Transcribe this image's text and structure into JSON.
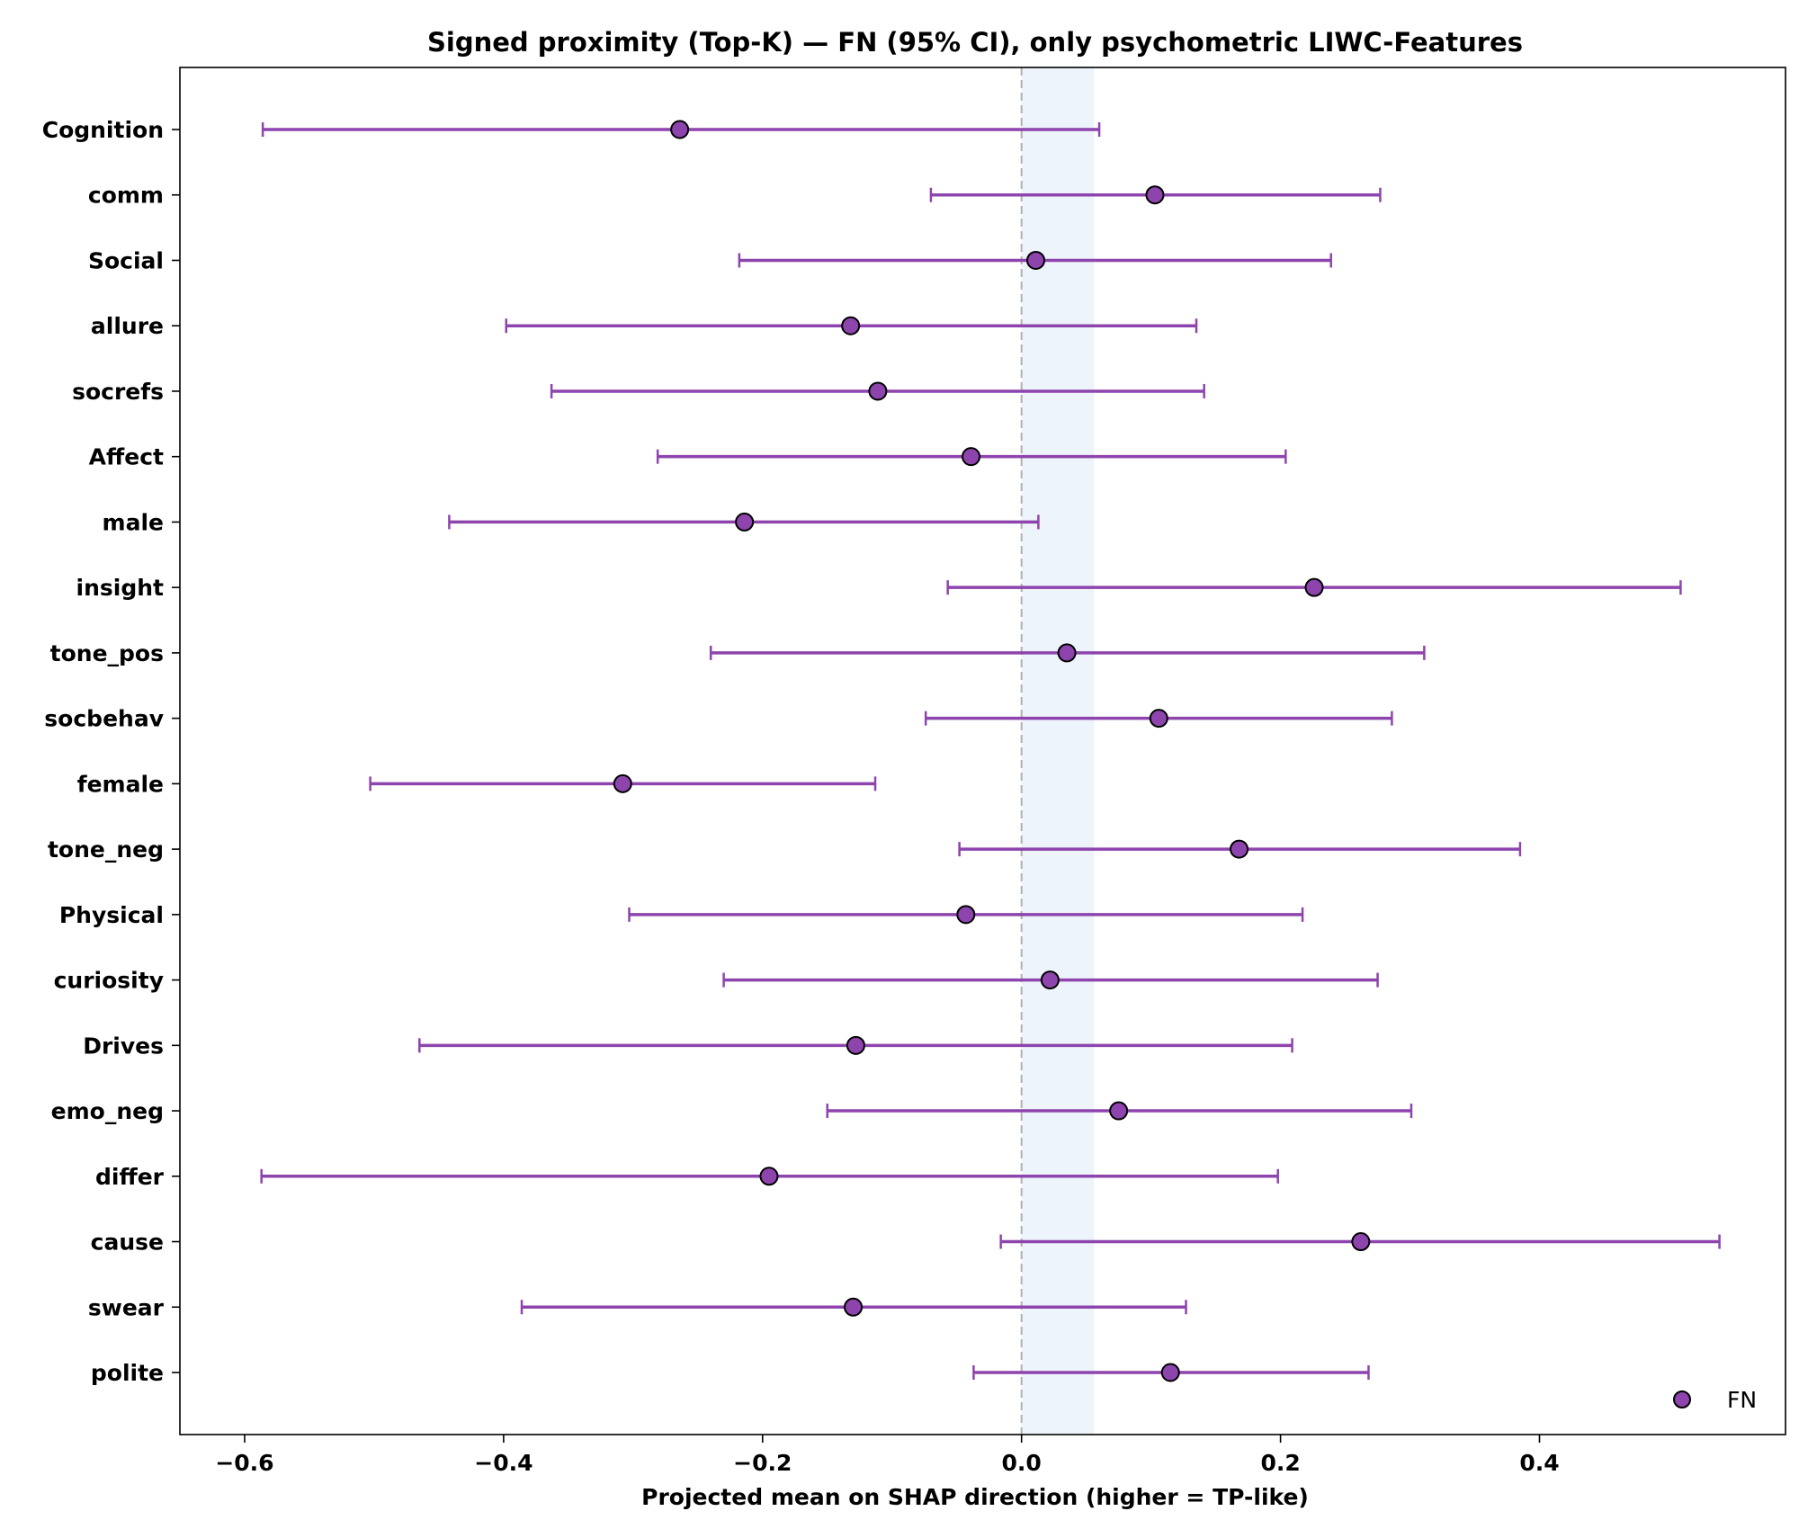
{
  "chart_data": {
    "type": "scatter",
    "title": "Signed proximity (Top-K) — FN (95% CI), only psychometric LIWC-Features",
    "xlabel": "Projected mean on SHAP direction (higher = TP-like)",
    "ylabel": "",
    "xlim": [
      -0.65,
      0.59
    ],
    "xticks": [
      -0.6,
      -0.4,
      -0.2,
      0.0,
      0.2,
      0.4
    ],
    "xtick_labels": [
      "−0.6",
      "−0.4",
      "−0.2",
      "0.0",
      "0.2",
      "0.4"
    ],
    "reference_line": {
      "x": 0.0,
      "style": "dashed"
    },
    "shaded_band": {
      "x_start": 0.0,
      "x_end": 0.056
    },
    "grid": false,
    "legend": {
      "position": "bottom-right",
      "entries": [
        "FN"
      ]
    },
    "colors": {
      "series": "#8e44ad",
      "marker_edge": "#000000",
      "refline": "#b0b0b0",
      "band": "#eef4fc"
    },
    "series": [
      {
        "name": "FN",
        "points": [
          {
            "label": "Cognition",
            "mean": -0.264,
            "ci_low": -0.586,
            "ci_high": 0.06
          },
          {
            "label": "comm",
            "mean": 0.103,
            "ci_low": -0.07,
            "ci_high": 0.277
          },
          {
            "label": "Social",
            "mean": 0.011,
            "ci_low": -0.218,
            "ci_high": 0.239
          },
          {
            "label": "allure",
            "mean": -0.132,
            "ci_low": -0.398,
            "ci_high": 0.135
          },
          {
            "label": "socrefs",
            "mean": -0.111,
            "ci_low": -0.363,
            "ci_high": 0.141
          },
          {
            "label": "Affect",
            "mean": -0.039,
            "ci_low": -0.281,
            "ci_high": 0.204
          },
          {
            "label": "male",
            "mean": -0.214,
            "ci_low": -0.442,
            "ci_high": 0.013
          },
          {
            "label": "insight",
            "mean": 0.226,
            "ci_low": -0.057,
            "ci_high": 0.509
          },
          {
            "label": "tone_pos",
            "mean": 0.035,
            "ci_low": -0.24,
            "ci_high": 0.311
          },
          {
            "label": "socbehav",
            "mean": 0.106,
            "ci_low": -0.074,
            "ci_high": 0.286
          },
          {
            "label": "female",
            "mean": -0.308,
            "ci_low": -0.503,
            "ci_high": -0.113
          },
          {
            "label": "tone_neg",
            "mean": 0.168,
            "ci_low": -0.048,
            "ci_high": 0.385
          },
          {
            "label": "Physical",
            "mean": -0.043,
            "ci_low": -0.303,
            "ci_high": 0.217
          },
          {
            "label": "curiosity",
            "mean": 0.022,
            "ci_low": -0.23,
            "ci_high": 0.275
          },
          {
            "label": "Drives",
            "mean": -0.128,
            "ci_low": -0.465,
            "ci_high": 0.209
          },
          {
            "label": "emo_neg",
            "mean": 0.075,
            "ci_low": -0.15,
            "ci_high": 0.301
          },
          {
            "label": "differ",
            "mean": -0.195,
            "ci_low": -0.587,
            "ci_high": 0.198
          },
          {
            "label": "cause",
            "mean": 0.262,
            "ci_low": -0.016,
            "ci_high": 0.539
          },
          {
            "label": "swear",
            "mean": -0.13,
            "ci_low": -0.386,
            "ci_high": 0.127
          },
          {
            "label": "polite",
            "mean": 0.115,
            "ci_low": -0.037,
            "ci_high": 0.268
          }
        ]
      }
    ]
  }
}
